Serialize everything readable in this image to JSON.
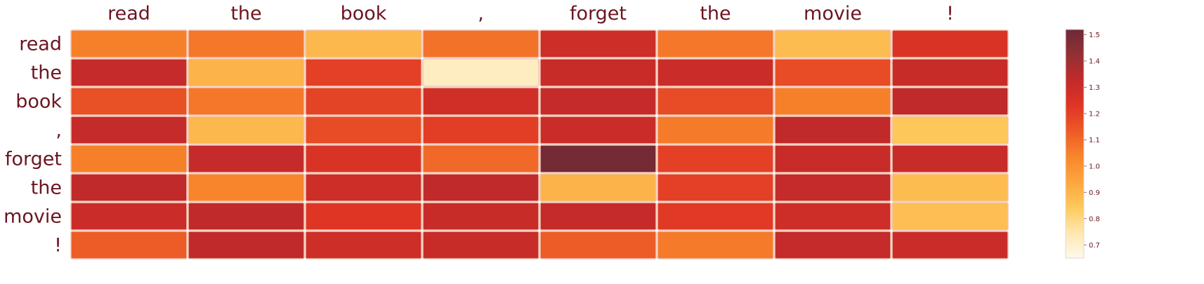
{
  "chart_data": {
    "type": "heatmap",
    "title": "",
    "xlabel": "",
    "ylabel": "",
    "x_categories": [
      "read",
      "the",
      "book",
      ",",
      "forget",
      "the",
      "movie",
      "!"
    ],
    "y_categories": [
      "read",
      "the",
      "book",
      ",",
      "forget",
      "the",
      "movie",
      "!"
    ],
    "values": [
      [
        1.05,
        1.07,
        0.89,
        1.08,
        1.29,
        1.07,
        0.88,
        1.25
      ],
      [
        1.32,
        0.9,
        1.2,
        0.72,
        1.31,
        1.3,
        1.17,
        1.31
      ],
      [
        1.16,
        1.07,
        1.19,
        1.28,
        1.32,
        1.17,
        1.05,
        1.33
      ],
      [
        1.32,
        0.89,
        1.17,
        1.21,
        1.3,
        1.06,
        1.33,
        0.85
      ],
      [
        1.05,
        1.32,
        1.25,
        1.1,
        1.5,
        1.2,
        1.31,
        1.31
      ],
      [
        1.33,
        1.04,
        1.29,
        1.33,
        0.9,
        1.2,
        1.32,
        0.88
      ],
      [
        1.3,
        1.33,
        1.23,
        1.31,
        1.32,
        1.22,
        1.29,
        0.87
      ],
      [
        1.13,
        1.33,
        1.29,
        1.31,
        1.13,
        1.06,
        1.32,
        1.3
      ]
    ],
    "colorbar": {
      "min": 0.65,
      "max": 1.52,
      "ticks": [
        0.7,
        0.8,
        0.9,
        1.0,
        1.1,
        1.2,
        1.3,
        1.4,
        1.5
      ],
      "tick_labels": [
        "0.7",
        "0.8",
        "0.9",
        "1.0",
        "1.1",
        "1.2",
        "1.3",
        "1.4",
        "1.5"
      ],
      "colormap": [
        "#fff9ed",
        "#fee8b0",
        "#fdc95c",
        "#fca63d",
        "#f8862b",
        "#ec5a27",
        "#df3525",
        "#c22a2a",
        "#933034",
        "#6d2a36"
      ]
    },
    "grid": false,
    "cell_border_color": "#f1c3b1",
    "label_color": "#6b1621"
  }
}
